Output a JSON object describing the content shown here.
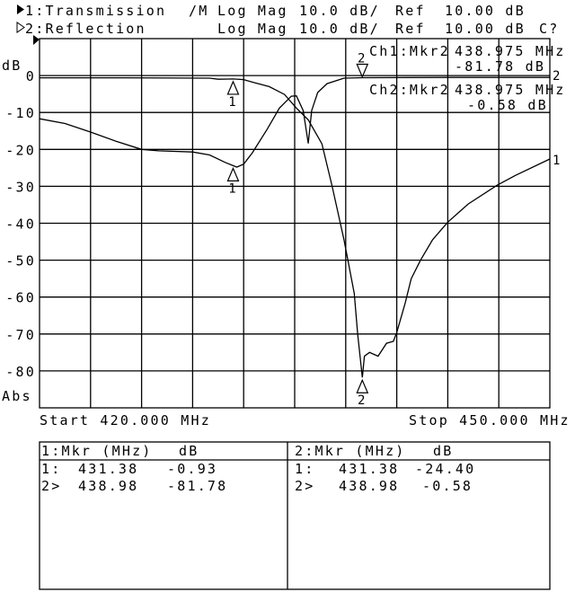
{
  "header": {
    "ch1": {
      "marker_icon": "filled-triangle",
      "label": "1:Transmission",
      "mode": "/M",
      "format": "Log Mag",
      "scale": "10.0 dB/",
      "ref_label": "Ref",
      "ref_value": "10.00 dB"
    },
    "ch2": {
      "marker_icon": "hollow-triangle",
      "label": "2:Reflection",
      "format": "Log Mag",
      "scale": "10.0 dB/",
      "ref_label": "Ref",
      "ref_value": "10.00 dB",
      "status": "C?"
    }
  },
  "active_marker_readout": {
    "ch1": {
      "label": "Ch1:Mkr2",
      "freq": "438.975 MHz",
      "value": "-81.78 dB"
    },
    "ch2": {
      "label": "Ch2:Mkr2",
      "freq": "438.975 MHz",
      "value": "-0.58 dB"
    }
  },
  "footer": {
    "start": "Start 420.000 MHz",
    "stop": "Stop 450.000 MHz"
  },
  "marker_table": [
    {
      "header_mkr": "1:Mkr (MHz)",
      "header_db": "dB",
      "rows": [
        {
          "id": "1:",
          "freq": "431.38",
          "db": "-0.93"
        },
        {
          "id": "2>",
          "freq": "438.98",
          "db": "-81.78"
        }
      ]
    },
    {
      "header_mkr": "2:Mkr (MHz)",
      "header_db": "dB",
      "rows": [
        {
          "id": "1:",
          "freq": "431.38",
          "db": "-24.40"
        },
        {
          "id": "2>",
          "freq": "438.98",
          "db": "-0.58"
        }
      ]
    }
  ],
  "chart_data": {
    "type": "line",
    "xlim": [
      420,
      450
    ],
    "ylim": [
      -90,
      10
    ],
    "ylabel": "dB",
    "ylabel_bottom": "Abs",
    "y_ticks": [
      {
        "v": 0,
        "label": "0"
      },
      {
        "v": -10,
        "label": "-10"
      },
      {
        "v": -20,
        "label": "-20"
      },
      {
        "v": -30,
        "label": "-30"
      },
      {
        "v": -40,
        "label": "-40"
      },
      {
        "v": -50,
        "label": "-50"
      },
      {
        "v": -60,
        "label": "-60"
      },
      {
        "v": -70,
        "label": "-70"
      },
      {
        "v": -80,
        "label": "-80"
      }
    ],
    "x_divisions": 10,
    "y_divisions": 10,
    "grid": true,
    "series": [
      {
        "name": "1",
        "points": [
          [
            420,
            -0.6
          ],
          [
            425,
            -0.6
          ],
          [
            430,
            -0.7
          ],
          [
            430.5,
            -1.0
          ],
          [
            431.38,
            -0.93
          ],
          [
            432,
            -1.1
          ],
          [
            432.6,
            -1.9
          ],
          [
            433.5,
            -3
          ],
          [
            434.4,
            -5.1
          ],
          [
            435.1,
            -8.8
          ],
          [
            435.8,
            -12
          ],
          [
            436.6,
            -18.5
          ],
          [
            437.2,
            -30
          ],
          [
            437.9,
            -44.5
          ],
          [
            438.5,
            -59
          ],
          [
            438.7,
            -70
          ],
          [
            438.975,
            -81.78
          ],
          [
            439.1,
            -76
          ],
          [
            439.4,
            -75
          ],
          [
            439.9,
            -76
          ],
          [
            440.4,
            -72.5
          ],
          [
            440.8,
            -72
          ],
          [
            441,
            -69.6
          ],
          [
            441.5,
            -61.5
          ],
          [
            441.85,
            -55
          ],
          [
            442.4,
            -50
          ],
          [
            443.1,
            -44.5
          ],
          [
            444,
            -39.7
          ],
          [
            445.2,
            -34.8
          ],
          [
            446.9,
            -29.7
          ],
          [
            448,
            -27
          ],
          [
            450,
            -22.6
          ]
        ],
        "markers": [
          {
            "id": "1",
            "freq": 431.38,
            "db": -0.93,
            "dir": "up"
          },
          {
            "id": "2",
            "freq": 438.975,
            "db": -81.78,
            "dir": "up"
          }
        ]
      },
      {
        "name": "2",
        "points": [
          [
            420,
            -11.7
          ],
          [
            421.5,
            -13
          ],
          [
            423,
            -15.3
          ],
          [
            424.5,
            -17.8
          ],
          [
            426,
            -20
          ],
          [
            427,
            -20.4
          ],
          [
            429,
            -20.7
          ],
          [
            430,
            -21.5
          ],
          [
            430.9,
            -23.5
          ],
          [
            431.38,
            -24.4
          ],
          [
            431.6,
            -24.8
          ],
          [
            432,
            -24
          ],
          [
            432.5,
            -21
          ],
          [
            433.4,
            -14.4
          ],
          [
            434.1,
            -8.8
          ],
          [
            434.8,
            -5.6
          ],
          [
            435.1,
            -5.5
          ],
          [
            435.5,
            -9.5
          ],
          [
            435.8,
            -18.4
          ],
          [
            436,
            -9.5
          ],
          [
            436.35,
            -4.6
          ],
          [
            436.9,
            -2.2
          ],
          [
            437.9,
            -0.7
          ],
          [
            438.975,
            -0.58
          ],
          [
            444,
            -0.5
          ],
          [
            450,
            -0.5
          ]
        ],
        "markers": [
          {
            "id": "1",
            "freq": 431.38,
            "db": -24.4,
            "dir": "up"
          },
          {
            "id": "2",
            "freq": 438.975,
            "db": -0.58,
            "dir": "down"
          }
        ]
      }
    ]
  }
}
